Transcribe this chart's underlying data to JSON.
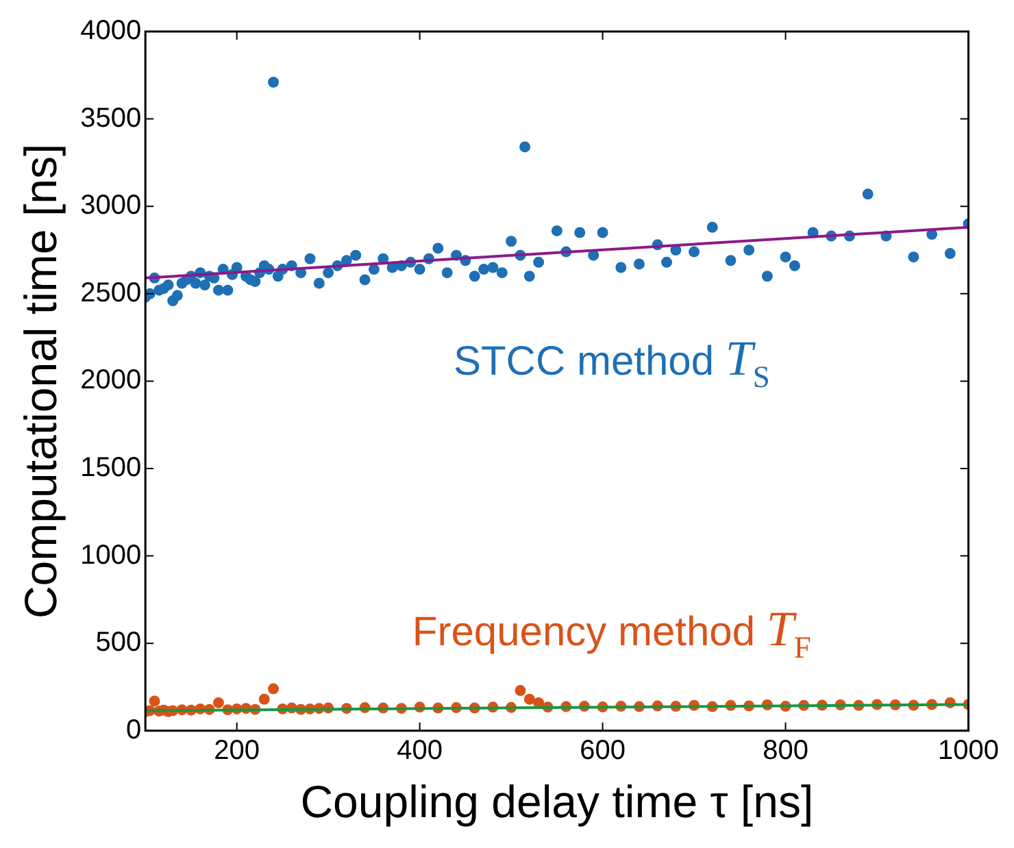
{
  "chart_data": {
    "type": "scatter",
    "xlabel": "Coupling delay time τ [ns]",
    "ylabel": "Computational time [ns]",
    "xlim": [
      100,
      1000
    ],
    "ylim": [
      0,
      4000
    ],
    "xticks": [
      200,
      400,
      600,
      800,
      1000
    ],
    "yticks": [
      0,
      500,
      1000,
      1500,
      2000,
      2500,
      3000,
      3500,
      4000
    ],
    "grid": false,
    "legend": false,
    "marker": "circle",
    "series": [
      {
        "name": "STCC method T$_{S}$",
        "color": "#1f6fb5",
        "x": [
          100,
          105,
          110,
          115,
          120,
          125,
          130,
          135,
          140,
          145,
          150,
          155,
          160,
          165,
          170,
          175,
          180,
          185,
          190,
          195,
          200,
          210,
          215,
          220,
          225,
          230,
          235,
          240,
          245,
          250,
          260,
          270,
          280,
          290,
          300,
          310,
          320,
          330,
          340,
          350,
          360,
          370,
          380,
          390,
          400,
          410,
          420,
          430,
          440,
          450,
          460,
          470,
          480,
          490,
          500,
          510,
          515,
          520,
          530,
          550,
          560,
          575,
          590,
          600,
          620,
          640,
          660,
          670,
          680,
          700,
          720,
          740,
          760,
          780,
          800,
          810,
          830,
          850,
          870,
          890,
          910,
          940,
          960,
          980,
          1000
        ],
        "values": [
          2480,
          2500,
          2590,
          2520,
          2530,
          2550,
          2460,
          2490,
          2560,
          2580,
          2600,
          2560,
          2620,
          2550,
          2600,
          2590,
          2520,
          2640,
          2520,
          2610,
          2650,
          2600,
          2580,
          2570,
          2620,
          2660,
          2640,
          3710,
          2600,
          2640,
          2660,
          2620,
          2700,
          2560,
          2620,
          2660,
          2690,
          2720,
          2580,
          2640,
          2700,
          2650,
          2660,
          2680,
          2640,
          2700,
          2760,
          2620,
          2720,
          2690,
          2600,
          2640,
          2650,
          2620,
          2800,
          2720,
          3340,
          2600,
          2680,
          2860,
          2740,
          2850,
          2720,
          2850,
          2650,
          2670,
          2780,
          2680,
          2750,
          2740,
          2880,
          2690,
          2750,
          2600,
          2710,
          2660,
          2850,
          2830,
          2830,
          3070,
          2830,
          2710,
          2840,
          2730,
          2900
        ]
      },
      {
        "name": "Frequency method T$_{F}$",
        "color": "#d95319",
        "x": [
          100,
          105,
          110,
          115,
          120,
          125,
          130,
          140,
          150,
          160,
          170,
          180,
          190,
          200,
          210,
          220,
          230,
          240,
          250,
          260,
          270,
          280,
          290,
          300,
          320,
          340,
          360,
          380,
          400,
          420,
          440,
          460,
          480,
          500,
          510,
          520,
          530,
          540,
          560,
          580,
          600,
          620,
          640,
          660,
          680,
          700,
          720,
          740,
          760,
          780,
          800,
          820,
          840,
          860,
          880,
          900,
          920,
          940,
          960,
          980,
          1000
        ],
        "values": [
          110,
          115,
          170,
          112,
          118,
          110,
          115,
          120,
          118,
          125,
          122,
          160,
          120,
          125,
          128,
          122,
          180,
          240,
          125,
          130,
          122,
          125,
          128,
          130,
          128,
          132,
          130,
          128,
          135,
          130,
          132,
          130,
          135,
          133,
          230,
          180,
          160,
          135,
          138,
          140,
          136,
          140,
          138,
          142,
          140,
          145,
          138,
          145,
          142,
          148,
          140,
          145,
          146,
          148,
          145,
          150,
          148,
          146,
          150,
          160,
          150
        ]
      },
      {
        "type": "line",
        "marker": "none",
        "color": "#8b1a8b",
        "x": [
          100,
          1000
        ],
        "values": [
          2590,
          2880
        ]
      },
      {
        "type": "line",
        "marker": "none",
        "color": "#1a9641",
        "x": [
          100,
          1000
        ],
        "values": [
          115,
          150
        ]
      }
    ]
  }
}
